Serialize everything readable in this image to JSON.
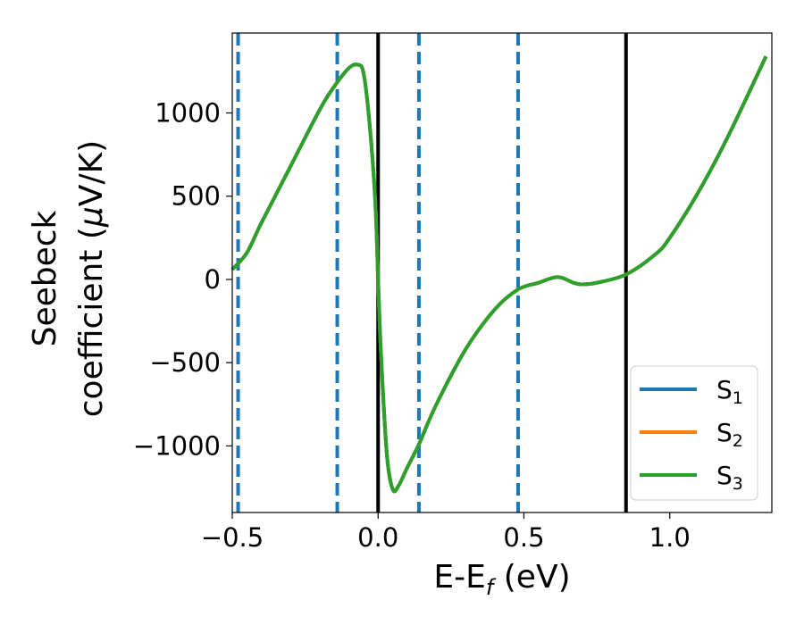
{
  "chart_data": {
    "type": "line",
    "xlabel": "E-E",
    "xlabel_sub": "f",
    "xlabel_unit": " (eV)",
    "ylabel_line1": "Seebeck",
    "ylabel_line2_prefix": "coefficient  (",
    "ylabel_mu": "μ",
    "ylabel_line2_suffix": "V/K)",
    "xlim": [
      -0.5,
      1.35
    ],
    "ylim": [
      -1400,
      1480
    ],
    "x_ticks": [
      -0.5,
      0.0,
      0.5,
      1.0
    ],
    "x_tick_labels": [
      "−0.5",
      "0.0",
      "0.5",
      "1.0"
    ],
    "y_ticks": [
      -1000,
      -500,
      0,
      500,
      1000
    ],
    "y_tick_labels": [
      "−1000",
      "−500",
      "0",
      "500",
      "1000"
    ],
    "grid": false,
    "legend_position": "lower-right",
    "series": [
      {
        "name": "S",
        "sub": "1",
        "color": "#1f77b4",
        "values": [
          [
            -0.5,
            60
          ],
          [
            -0.45,
            160
          ],
          [
            -0.4,
            340
          ],
          [
            -0.3,
            680
          ],
          [
            -0.2,
            1020
          ],
          [
            -0.15,
            1160
          ],
          [
            -0.1,
            1270
          ],
          [
            -0.07,
            1290
          ],
          [
            -0.05,
            1240
          ],
          [
            -0.03,
            950
          ],
          [
            -0.01,
            480
          ],
          [
            0.0,
            0
          ],
          [
            0.01,
            -450
          ],
          [
            0.03,
            -1050
          ],
          [
            0.05,
            -1260
          ],
          [
            0.07,
            -1240
          ],
          [
            0.1,
            -1130
          ],
          [
            0.14,
            -990
          ],
          [
            0.2,
            -750
          ],
          [
            0.3,
            -420
          ],
          [
            0.4,
            -180
          ],
          [
            0.48,
            -60
          ],
          [
            0.55,
            -20
          ],
          [
            0.6,
            10
          ],
          [
            0.63,
            10
          ],
          [
            0.67,
            -20
          ],
          [
            0.7,
            -30
          ],
          [
            0.75,
            -20
          ],
          [
            0.85,
            30
          ],
          [
            0.95,
            150
          ],
          [
            1.0,
            250
          ],
          [
            1.1,
            530
          ],
          [
            1.2,
            860
          ],
          [
            1.33,
            1340
          ]
        ]
      },
      {
        "name": "S",
        "sub": "2",
        "color": "#ff7f0e",
        "values": [
          [
            -0.5,
            60
          ],
          [
            -0.45,
            160
          ],
          [
            -0.4,
            340
          ],
          [
            -0.3,
            680
          ],
          [
            -0.2,
            1020
          ],
          [
            -0.15,
            1160
          ],
          [
            -0.1,
            1270
          ],
          [
            -0.07,
            1290
          ],
          [
            -0.05,
            1240
          ],
          [
            -0.03,
            950
          ],
          [
            -0.01,
            480
          ],
          [
            0.0,
            0
          ],
          [
            0.01,
            -450
          ],
          [
            0.03,
            -1050
          ],
          [
            0.05,
            -1260
          ],
          [
            0.07,
            -1240
          ],
          [
            0.1,
            -1130
          ],
          [
            0.14,
            -990
          ],
          [
            0.2,
            -750
          ],
          [
            0.3,
            -420
          ],
          [
            0.4,
            -180
          ],
          [
            0.48,
            -60
          ],
          [
            0.55,
            -20
          ],
          [
            0.6,
            10
          ],
          [
            0.63,
            10
          ],
          [
            0.67,
            -20
          ],
          [
            0.7,
            -30
          ],
          [
            0.75,
            -20
          ],
          [
            0.85,
            30
          ],
          [
            0.95,
            150
          ],
          [
            1.0,
            250
          ],
          [
            1.1,
            530
          ],
          [
            1.2,
            860
          ],
          [
            1.33,
            1340
          ]
        ]
      },
      {
        "name": "S",
        "sub": "3",
        "color": "#2ca02c",
        "values": [
          [
            -0.5,
            60
          ],
          [
            -0.45,
            160
          ],
          [
            -0.4,
            340
          ],
          [
            -0.3,
            680
          ],
          [
            -0.2,
            1020
          ],
          [
            -0.15,
            1160
          ],
          [
            -0.1,
            1270
          ],
          [
            -0.07,
            1290
          ],
          [
            -0.05,
            1240
          ],
          [
            -0.03,
            950
          ],
          [
            -0.01,
            480
          ],
          [
            0.0,
            0
          ],
          [
            0.01,
            -450
          ],
          [
            0.03,
            -1050
          ],
          [
            0.05,
            -1260
          ],
          [
            0.07,
            -1240
          ],
          [
            0.1,
            -1130
          ],
          [
            0.14,
            -990
          ],
          [
            0.2,
            -750
          ],
          [
            0.3,
            -420
          ],
          [
            0.4,
            -180
          ],
          [
            0.48,
            -60
          ],
          [
            0.55,
            -20
          ],
          [
            0.6,
            10
          ],
          [
            0.63,
            10
          ],
          [
            0.67,
            -20
          ],
          [
            0.7,
            -30
          ],
          [
            0.75,
            -20
          ],
          [
            0.85,
            30
          ],
          [
            0.95,
            150
          ],
          [
            1.0,
            250
          ],
          [
            1.1,
            530
          ],
          [
            1.2,
            860
          ],
          [
            1.33,
            1340
          ]
        ]
      }
    ],
    "vlines_dashed": {
      "color": "#1f77b4",
      "x": [
        -0.48,
        -0.14,
        0.14,
        0.48
      ]
    },
    "vlines_solid": {
      "color": "#000000",
      "x": [
        0.0,
        0.85
      ]
    }
  }
}
